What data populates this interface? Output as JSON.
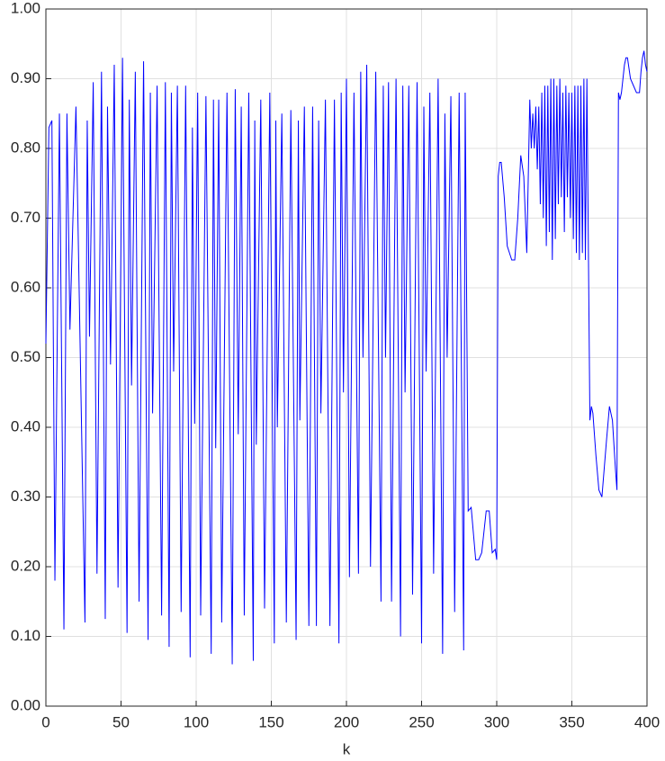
{
  "chart_data": {
    "type": "line",
    "xlabel": "k",
    "x": [
      0,
      2,
      4,
      6,
      9,
      12,
      14,
      16,
      20,
      26,
      27.5,
      29,
      31.5,
      34,
      37,
      39.5,
      41,
      43,
      45.5,
      48,
      51,
      54,
      55.5,
      57,
      59.5,
      62,
      65,
      68,
      69.5,
      71,
      74,
      77,
      79.5,
      82,
      83.5,
      85,
      87.5,
      90,
      93,
      96,
      97.5,
      99,
      101,
      103,
      106.5,
      110,
      111.5,
      113,
      115,
      117,
      120.5,
      124,
      126,
      128,
      130,
      132,
      135,
      138,
      139,
      140,
      143,
      145.5,
      149,
      152,
      153,
      154,
      157,
      160,
      163,
      166.5,
      168,
      169,
      172,
      175,
      177.5,
      180,
      181.5,
      183,
      186,
      189,
      192,
      195,
      196.5,
      198,
      200,
      202,
      205,
      208,
      209.5,
      211,
      213.5,
      216,
      219.5,
      223,
      224.5,
      226,
      228,
      230,
      233,
      236,
      237.5,
      239,
      241.5,
      244,
      247,
      250,
      251.5,
      253,
      255.5,
      258,
      261,
      264,
      265.5,
      267,
      269.5,
      272,
      275,
      278,
      279,
      281,
      283,
      286,
      288,
      290,
      293,
      295,
      297,
      299,
      300,
      301,
      302,
      303,
      305,
      307,
      310,
      312,
      314,
      316,
      318,
      320,
      322,
      323,
      324,
      325,
      326,
      327,
      328,
      329,
      330,
      331,
      332,
      333,
      334,
      335,
      336,
      337,
      338,
      339,
      340,
      341,
      342,
      343,
      344,
      345,
      346,
      347,
      348,
      349,
      350,
      351,
      352,
      353,
      354,
      355,
      356,
      357,
      358,
      359,
      360,
      362,
      363,
      364,
      366,
      368,
      370,
      373,
      375,
      377,
      379,
      380,
      381,
      382,
      383,
      385,
      386,
      387,
      389,
      391,
      393,
      395,
      396,
      397,
      398,
      399,
      400
    ],
    "series": [
      {
        "color": "#0000ff",
        "values": [
          0.52,
          0.83,
          0.84,
          0.18,
          0.85,
          0.11,
          0.85,
          0.54,
          0.86,
          0.12,
          0.84,
          0.53,
          0.895,
          0.19,
          0.91,
          0.125,
          0.86,
          0.49,
          0.92,
          0.17,
          0.93,
          0.105,
          0.87,
          0.46,
          0.91,
          0.15,
          0.925,
          0.095,
          0.88,
          0.42,
          0.89,
          0.13,
          0.895,
          0.085,
          0.88,
          0.48,
          0.89,
          0.135,
          0.89,
          0.07,
          0.83,
          0.405,
          0.88,
          0.13,
          0.875,
          0.075,
          0.87,
          0.37,
          0.87,
          0.12,
          0.88,
          0.06,
          0.885,
          0.39,
          0.86,
          0.13,
          0.88,
          0.065,
          0.84,
          0.375,
          0.87,
          0.14,
          0.88,
          0.09,
          0.84,
          0.4,
          0.85,
          0.12,
          0.855,
          0.095,
          0.84,
          0.41,
          0.86,
          0.115,
          0.86,
          0.115,
          0.84,
          0.42,
          0.87,
          0.115,
          0.87,
          0.09,
          0.88,
          0.45,
          0.9,
          0.185,
          0.88,
          0.19,
          0.91,
          0.5,
          0.92,
          0.2,
          0.91,
          0.15,
          0.89,
          0.5,
          0.895,
          0.15,
          0.9,
          0.1,
          0.89,
          0.45,
          0.89,
          0.16,
          0.895,
          0.09,
          0.86,
          0.48,
          0.88,
          0.19,
          0.9,
          0.075,
          0.85,
          0.5,
          0.875,
          0.135,
          0.88,
          0.08,
          0.88,
          0.28,
          0.285,
          0.21,
          0.21,
          0.22,
          0.28,
          0.28,
          0.22,
          0.225,
          0.21,
          0.76,
          0.78,
          0.78,
          0.73,
          0.66,
          0.64,
          0.64,
          0.7,
          0.79,
          0.76,
          0.65,
          0.87,
          0.8,
          0.85,
          0.8,
          0.86,
          0.77,
          0.86,
          0.72,
          0.88,
          0.7,
          0.89,
          0.66,
          0.89,
          0.68,
          0.9,
          0.64,
          0.9,
          0.67,
          0.89,
          0.72,
          0.9,
          0.73,
          0.88,
          0.68,
          0.89,
          0.73,
          0.88,
          0.7,
          0.88,
          0.67,
          0.89,
          0.65,
          0.89,
          0.64,
          0.89,
          0.65,
          0.9,
          0.64,
          0.9,
          0.41,
          0.43,
          0.42,
          0.36,
          0.31,
          0.3,
          0.38,
          0.43,
          0.41,
          0.34,
          0.31,
          0.88,
          0.87,
          0.88,
          0.92,
          0.93,
          0.93,
          0.9,
          0.89,
          0.88,
          0.88,
          0.91,
          0.93,
          0.94,
          0.92,
          0.91
        ]
      }
    ],
    "xlim": [
      0,
      400
    ],
    "xticks": [
      0,
      50,
      100,
      150,
      200,
      250,
      300,
      350,
      400
    ],
    "ylim": [
      0,
      1
    ],
    "yticks": [
      {
        "value": 0,
        "label": "0.00"
      },
      {
        "value": 0.1,
        "label": "0.10"
      },
      {
        "value": 0.2,
        "label": "0.20"
      },
      {
        "value": 0.3,
        "label": "0.30"
      },
      {
        "value": 0.4,
        "label": "0.40"
      },
      {
        "value": 0.5,
        "label": "0.50"
      },
      {
        "value": 0.6,
        "label": "0.60"
      },
      {
        "value": 0.7,
        "label": "0.70"
      },
      {
        "value": 0.8,
        "label": "0.80"
      },
      {
        "value": 0.9,
        "label": "0.90"
      },
      {
        "value": 1,
        "label": "1.00"
      }
    ],
    "grid": true
  }
}
